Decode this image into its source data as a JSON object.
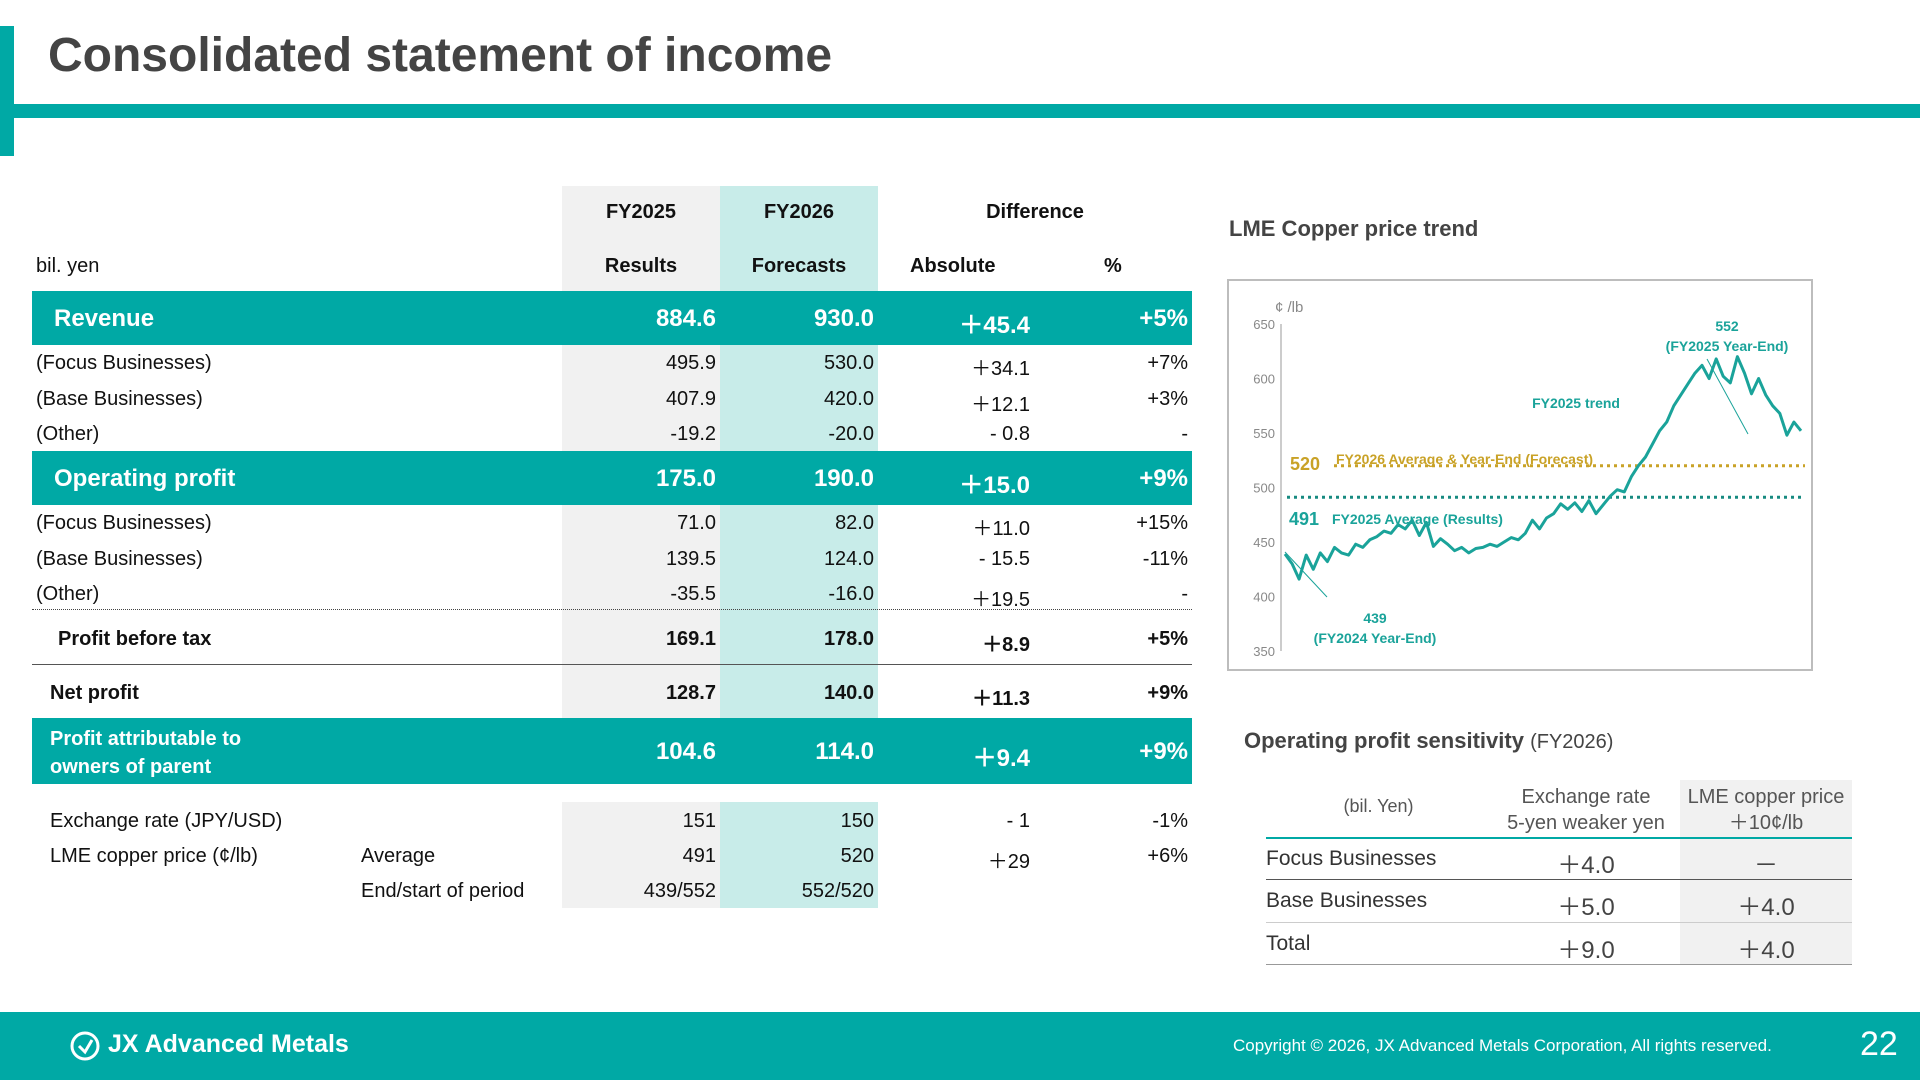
{
  "title": "Consolidated statement of income",
  "table": {
    "unit": "bil. yen",
    "col_fy2025": "FY2025",
    "col_fy2025_sub": "Results",
    "col_fy2026": "FY2026",
    "col_fy2026_sub": "Forecasts",
    "col_diff": "Difference",
    "col_abs": "Absolute",
    "col_pct": "%",
    "rows": [
      {
        "label": "Revenue",
        "fy25": "884.6",
        "fy26": "930.0",
        "abs": "＋45.4",
        "pct": "+5%"
      },
      {
        "label": "(Focus Businesses)",
        "fy25": "495.9",
        "fy26": "530.0",
        "abs": "＋34.1",
        "pct": "+7%"
      },
      {
        "label": "(Base Businesses)",
        "fy25": "407.9",
        "fy26": "420.0",
        "abs": "＋12.1",
        "pct": "+3%"
      },
      {
        "label": "(Other)",
        "fy25": "-19.2",
        "fy26": "-20.0",
        "abs": "- 0.8",
        "pct": "-"
      },
      {
        "label": "Operating profit",
        "fy25": "175.0",
        "fy26": "190.0",
        "abs": "＋15.0",
        "pct": "+9%"
      },
      {
        "label": "(Focus Businesses)",
        "fy25": "71.0",
        "fy26": "82.0",
        "abs": "＋11.0",
        "pct": "+15%"
      },
      {
        "label": "(Base Businesses)",
        "fy25": "139.5",
        "fy26": "124.0",
        "abs": "- 15.5",
        "pct": "-11%"
      },
      {
        "label": "(Other)",
        "fy25": "-35.5",
        "fy26": "-16.0",
        "abs": "＋19.5",
        "pct": "-"
      },
      {
        "label": "Profit  before tax",
        "fy25": "169.1",
        "fy26": "178.0",
        "abs": "＋8.9",
        "pct": "+5%"
      },
      {
        "label": "Net profit",
        "fy25": "128.7",
        "fy26": "140.0",
        "abs": "＋11.3",
        "pct": "+9%"
      },
      {
        "label_line1": "Profit attributable to",
        "label_line2": "owners of parent",
        "fy25": "104.6",
        "fy26": "114.0",
        "abs": "＋9.4",
        "pct": "+9%"
      },
      {
        "label": "Exchange rate (JPY/USD)",
        "fy25": "151",
        "fy26": "150",
        "abs": "- 1",
        "pct": "-1%"
      },
      {
        "label": "LME copper price (¢/lb)",
        "sub": "Average",
        "fy25": "491",
        "fy26": "520",
        "abs": "＋29",
        "pct": "+6%"
      },
      {
        "sub": "End/start of period",
        "fy25": "439/552",
        "fy26": "552/520"
      }
    ]
  },
  "chart": {
    "title": "LME Copper price trend",
    "unit_label": "¢ /lb",
    "ann_552_value": "552",
    "ann_552_label": "(FY2025 Year-End)",
    "ann_439_value": "439",
    "ann_439_label": "(FY2024 Year-End)",
    "trend_label": "FY2025 trend",
    "line_520_value": "520",
    "line_520_label": "FY2026 Average & Year-End (Forecast)",
    "line_491_value": "491",
    "line_491_label": "FY2025 Average (Results)",
    "colors": {
      "trend": "#1aa39a",
      "forecast": "#c9a227",
      "average": "#178a80"
    }
  },
  "chart_data": {
    "type": "line",
    "title": "LME Copper price trend",
    "ylabel": "¢ /lb",
    "ylim": [
      350,
      650
    ],
    "y_ticks": [
      "350",
      "400",
      "450",
      "500",
      "550",
      "600",
      "650"
    ],
    "grid": false,
    "series": [
      {
        "name": "FY2025 trend",
        "values": [
          439,
          430,
          416,
          438,
          425,
          440,
          432,
          445,
          440,
          438,
          448,
          445,
          452,
          455,
          460,
          458,
          466,
          462,
          470,
          456,
          468,
          446,
          453,
          448,
          442,
          445,
          440,
          444,
          445,
          448,
          446,
          450,
          454,
          452,
          458,
          470,
          462,
          472,
          476,
          485,
          480,
          486,
          478,
          488,
          476,
          484,
          492,
          498,
          496,
          510,
          520,
          528,
          540,
          552,
          560,
          575,
          585,
          595,
          605,
          612,
          600,
          618,
          602,
          596,
          620,
          605,
          586,
          600,
          585,
          575,
          568,
          548,
          560,
          552
        ]
      },
      {
        "name": "FY2026 Average & Year-End (Forecast)",
        "values": [
          520,
          520
        ]
      },
      {
        "name": "FY2025 Average (Results)",
        "values": [
          491,
          491
        ]
      }
    ]
  },
  "sensitivity": {
    "title": "Operating profit sensitivity",
    "title_sub": "(FY2026)",
    "unit": "(bil. Yen)",
    "col1_line1": "Exchange rate",
    "col1_line2": "5-yen weaker yen",
    "col2_line1": "LME copper price",
    "col2_line2": "＋10¢/lb",
    "rows": [
      {
        "label": "Focus Businesses",
        "fx": "＋4.0",
        "cu": "－"
      },
      {
        "label": "Base Businesses",
        "fx": "＋5.0",
        "cu": "＋4.0"
      },
      {
        "label": "Total",
        "fx": "＋9.0",
        "cu": "＋4.0"
      }
    ]
  },
  "footer": {
    "logo": "JX Advanced Metals",
    "copyright": "Copyright © 2026, JX Advanced Metals Corporation, All rights reserved.",
    "page": "22"
  }
}
